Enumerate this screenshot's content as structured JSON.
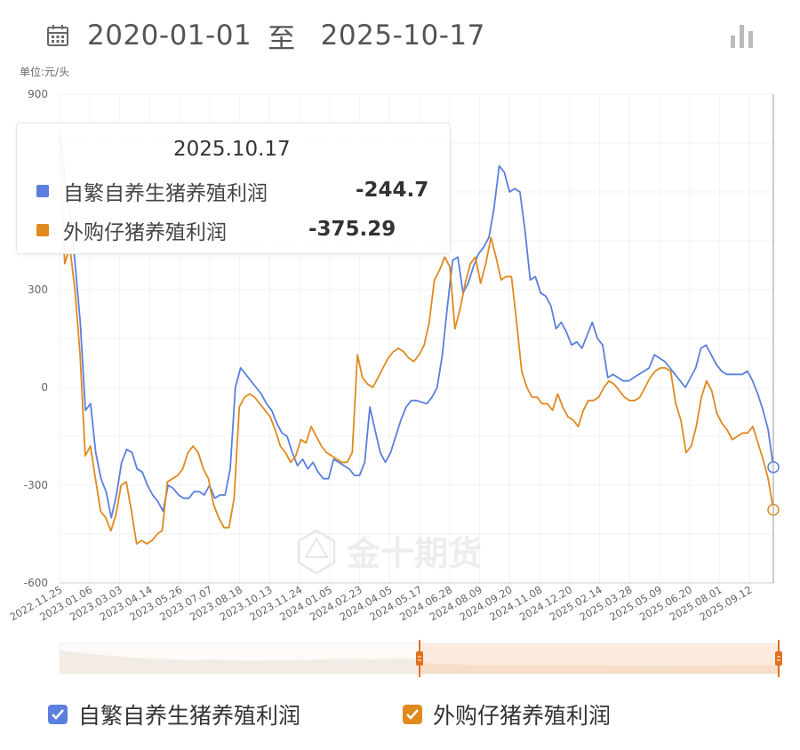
{
  "header": {
    "start_date": "2020-01-01",
    "separator": "至",
    "end_date": "2025-10-17"
  },
  "icons": {
    "calendar": "calendar-icon",
    "chart_type": "bar-chart-icon",
    "watermark": "jin10-logo"
  },
  "watermark_text": "金十期货",
  "tooltip": {
    "date": "2025.10.17",
    "rows": [
      {
        "name": "自繁自养生猪养殖利润",
        "value": "-244.7",
        "color": "#5b7fde"
      },
      {
        "name": "外购仔猪养殖利润",
        "value": "-375.29",
        "color": "#e0891e"
      }
    ]
  },
  "legend": [
    {
      "name": "自繁自养生猪养殖利润",
      "color": "#5b7fde",
      "checked": true
    },
    {
      "name": "外购仔猪养殖利润",
      "color": "#e0891e",
      "checked": true
    }
  ],
  "chart_data": {
    "type": "line",
    "unit_label": "单位:元/头",
    "ylim": [
      -600,
      900
    ],
    "yticks": [
      "900",
      "300",
      "0",
      "-300",
      "-600"
    ],
    "yticks_values": [
      900,
      300,
      0,
      -300,
      -600
    ],
    "xticks": [
      "2022.11.25",
      "2023.01.06",
      "2023.03.03",
      "2023.04.14",
      "2023.05.26",
      "2023.07.07",
      "2023.08.18",
      "2023.10.13",
      "2023.11.24",
      "2024.01.05",
      "2024.02.23",
      "2024.04.05",
      "2024.05.17",
      "2024.06.28",
      "2024.08.09",
      "2024.09.20",
      "2024.11.08",
      "2024.12.20",
      "2025.02.14",
      "2025.03.28",
      "2025.05.09",
      "2025.06.20",
      "2025.08.01",
      "2025.09.12"
    ],
    "grid": true,
    "legend_position": "bottom",
    "series": [
      {
        "name": "自繁自养生猪养殖利润",
        "color": "#5b7fde",
        "values": [
          790,
          650,
          540,
          380,
          200,
          -70,
          -50,
          -200,
          -280,
          -320,
          -400,
          -330,
          -230,
          -190,
          -200,
          -250,
          -260,
          -300,
          -330,
          -350,
          -380,
          -300,
          -310,
          -330,
          -340,
          -340,
          -320,
          -320,
          -330,
          -300,
          -340,
          -330,
          -330,
          -250,
          0,
          60,
          40,
          20,
          0,
          -20,
          -50,
          -70,
          -110,
          -140,
          -150,
          -200,
          -240,
          -220,
          -250,
          -230,
          -260,
          -280,
          -280,
          -220,
          -230,
          -240,
          -250,
          -270,
          -270,
          -230,
          -60,
          -130,
          -200,
          -230,
          -200,
          -150,
          -100,
          -60,
          -40,
          -40,
          -45,
          -50,
          -30,
          0,
          100,
          250,
          390,
          400,
          290,
          320,
          370,
          410,
          430,
          460,
          550,
          680,
          660,
          600,
          610,
          600,
          480,
          330,
          340,
          290,
          280,
          250,
          180,
          200,
          170,
          130,
          140,
          120,
          160,
          200,
          150,
          130,
          30,
          40,
          30,
          20,
          20,
          30,
          40,
          50,
          60,
          100,
          90,
          80,
          60,
          40,
          20,
          0,
          30,
          60,
          120,
          130,
          100,
          70,
          50,
          40,
          40,
          40,
          40,
          50,
          20,
          -20,
          -70,
          -130,
          -244.7
        ]
      },
      {
        "name": "外购仔猪养殖利润",
        "color": "#e0891e",
        "values": [
          760,
          380,
          430,
          300,
          100,
          -210,
          -180,
          -280,
          -380,
          -400,
          -440,
          -390,
          -300,
          -290,
          -380,
          -480,
          -470,
          -480,
          -470,
          -450,
          -440,
          -290,
          -280,
          -270,
          -250,
          -200,
          -180,
          -200,
          -250,
          -280,
          -360,
          -400,
          -430,
          -430,
          -340,
          -60,
          -30,
          -20,
          -30,
          -50,
          -70,
          -90,
          -130,
          -180,
          -200,
          -230,
          -210,
          -160,
          -170,
          -120,
          -150,
          -180,
          -200,
          -210,
          -220,
          -230,
          -230,
          -200,
          100,
          30,
          10,
          0,
          30,
          60,
          90,
          110,
          120,
          110,
          90,
          80,
          100,
          130,
          200,
          330,
          360,
          400,
          370,
          180,
          240,
          320,
          380,
          400,
          320,
          380,
          460,
          400,
          330,
          340,
          340,
          200,
          50,
          0,
          -30,
          -30,
          -50,
          -50,
          -70,
          -20,
          -60,
          -90,
          -100,
          -120,
          -70,
          -40,
          -40,
          -30,
          0,
          20,
          10,
          -10,
          -30,
          -40,
          -40,
          -30,
          0,
          30,
          50,
          60,
          60,
          50,
          -50,
          -100,
          -200,
          -180,
          -120,
          -30,
          20,
          -10,
          -80,
          -110,
          -130,
          -160,
          -150,
          -140,
          -140,
          -120,
          -170,
          -220,
          -280,
          -375.29
        ]
      }
    ]
  }
}
